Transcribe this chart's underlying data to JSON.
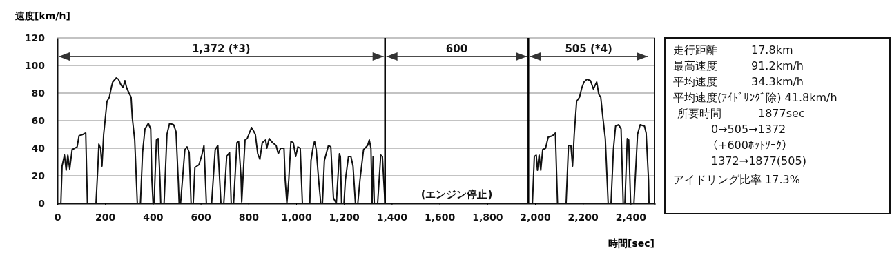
{
  "chart_data": {
    "type": "line",
    "xlabel": "時間[sec]",
    "ylabel": "速度[km/h]",
    "xlim": [
      0,
      2500
    ],
    "ylim": [
      0,
      120
    ],
    "xticks": [
      0,
      200,
      400,
      600,
      800,
      {
        "value": 1000,
        "label": "1,000"
      },
      {
        "value": 1200,
        "label": "1,200"
      },
      {
        "value": 1400,
        "label": "1,400"
      },
      {
        "value": 1600,
        "label": "1,600"
      },
      {
        "value": 1800,
        "label": "1,800"
      },
      {
        "value": 2000,
        "label": "2,000"
      },
      {
        "value": 2200,
        "label": "2,200"
      },
      {
        "value": 2400,
        "label": "2,400"
      }
    ],
    "yticks": [
      0,
      20,
      40,
      60,
      80,
      100,
      120
    ],
    "grid": "y",
    "marker": "none",
    "line_style": "solid",
    "ref_lines": [
      {
        "axis": "x",
        "value": 1372,
        "color": "#000000"
      },
      {
        "axis": "x",
        "value": 1972,
        "color": "#000000"
      }
    ],
    "annotations": [
      "1,372 (*3)",
      "600",
      "505 (*4)",
      "(エンジン停止)",
      "走行距離",
      "17.8km",
      "最高速度",
      "91.2km/h",
      "平均速度",
      "34.3km/h",
      "平均速度(ｱｲﾄﾞﾘﾝｸﾞ除) 41.8km/h",
      "所要時間",
      "1877sec",
      "0→505→1372",
      "（+600ﾎｯﾄｿｰｸ）",
      "1372→1877(505)",
      "アイドリング比率 17.3%"
    ],
    "series": [
      {
        "color": "#111111",
        "x": [
          0,
          15,
          20,
          30,
          37,
          44,
          52,
          62,
          73,
          83,
          91,
          107,
          119,
          126,
          162,
          170,
          174,
          181,
          187,
          194,
          200,
          208,
          218,
          226,
          232,
          247,
          256,
          266,
          276,
          283,
          290,
          300,
          309,
          314,
          324,
          335,
          348,
          357,
          367,
          381,
          391,
          396,
          401,
          405,
          415,
          422,
          430,
          433,
          447,
          459,
          470,
          487,
          497,
          507,
          510,
          516,
          534,
          543,
          552,
          560,
          569,
          576,
          593,
          605,
          614,
          624,
          646,
          661,
          672,
          685,
          697,
          709,
          721,
          728,
          738,
          752,
          759,
          769,
          772,
          786,
          795,
          813,
          820,
          829,
          839,
          848,
          858,
          872,
          877,
          887,
          901,
          916,
          925,
          935,
          949,
          954,
          961,
          969,
          978,
          988,
          998,
          1007,
          1017,
          1026,
          1057,
          1062,
          1072,
          1077,
          1084,
          1094,
          1103,
          1110,
          1118,
          1135,
          1145,
          1156,
          1168,
          1181,
          1185,
          1190,
          1200,
          1206,
          1219,
          1229,
          1238,
          1248,
          1258,
          1267,
          1282,
          1299,
          1306,
          1313,
          1318,
          1322,
          1327,
          1341,
          1354,
          1361,
          1372,
          1672,
          1972,
          1989,
          1997,
          2005,
          2010,
          2017,
          2024,
          2032,
          2044,
          2055,
          2073,
          2085,
          2094,
          2130,
          2140,
          2150,
          2157,
          2164,
          2174,
          2186,
          2196,
          2205,
          2217,
          2232,
          2244,
          2258,
          2267,
          2275,
          2284,
          2294,
          2306,
          2318,
          2328,
          2337,
          2350,
          2360,
          2369,
          2376,
          2386,
          2392,
          2400,
          2414,
          2429,
          2440,
          2458,
          2465,
          2475,
          2477
        ],
        "values": [
          0,
          0,
          27,
          35,
          24,
          35,
          25,
          39,
          40,
          41,
          49,
          50,
          51,
          0,
          0,
          27,
          43,
          40,
          27,
          50,
          60,
          74,
          77,
          84,
          88,
          91,
          90,
          86,
          84,
          89,
          84,
          80,
          77,
          62,
          46,
          0,
          0,
          37,
          54,
          58,
          54,
          17,
          0,
          0,
          46,
          47,
          17,
          0,
          0,
          50,
          58,
          57,
          52,
          14,
          0,
          0,
          39,
          41,
          37,
          0,
          0,
          26,
          28,
          35,
          42,
          0,
          0,
          39,
          42,
          0,
          0,
          34,
          37,
          0,
          0,
          44,
          45,
          19,
          1,
          46,
          47,
          55,
          53,
          50,
          36,
          32,
          44,
          46,
          40,
          47,
          44,
          42,
          36,
          40,
          40,
          17,
          0,
          17,
          45,
          44,
          34,
          41,
          40,
          0,
          0,
          31,
          42,
          45,
          39,
          17,
          0,
          0,
          31,
          42,
          41,
          4,
          0,
          36,
          34,
          0,
          0,
          17,
          34,
          34,
          27,
          0,
          0,
          17,
          39,
          42,
          46,
          40,
          0,
          34,
          0,
          0,
          35,
          34,
          0,
          null,
          0,
          0,
          34,
          35,
          24,
          35,
          24,
          39,
          40,
          48,
          49,
          51,
          0,
          0,
          42,
          42,
          27,
          50,
          74,
          77,
          84,
          88,
          90,
          89,
          83,
          88,
          79,
          77,
          62,
          47,
          0,
          0,
          39,
          56,
          57,
          54,
          0,
          0,
          47,
          46,
          0,
          0,
          50,
          57,
          56,
          51,
          17,
          0
        ]
      }
    ]
  }
}
